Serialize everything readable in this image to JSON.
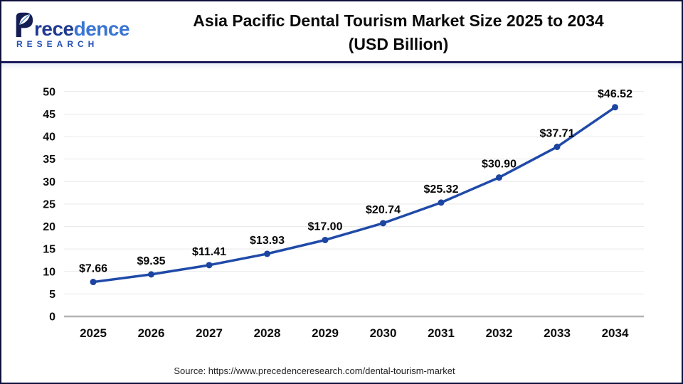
{
  "header": {
    "logo": {
      "brand_mid": "rece",
      "brand_tail": "dence",
      "subtitle": "RESEARCH"
    },
    "title_line1": "Asia Pacific Dental Tourism Market Size 2025 to 2034",
    "title_line2": "(USD Billion)"
  },
  "chart_data": {
    "type": "line",
    "title": "Asia Pacific Dental Tourism Market Size 2025 to 2034 (USD Billion)",
    "categories": [
      "2025",
      "2026",
      "2027",
      "2028",
      "2029",
      "2030",
      "2031",
      "2032",
      "2033",
      "2034"
    ],
    "values": [
      7.66,
      9.35,
      11.41,
      13.93,
      17.0,
      20.74,
      25.32,
      30.9,
      37.71,
      46.52
    ],
    "point_labels": [
      "$7.66",
      "$9.35",
      "$11.41",
      "$13.93",
      "$17.00",
      "$20.74",
      "$25.32",
      "$30.90",
      "$37.71",
      "$46.52"
    ],
    "yticks": [
      0,
      5,
      10,
      15,
      20,
      25,
      30,
      35,
      40,
      45,
      50
    ],
    "ylim": [
      0,
      50
    ],
    "xlabel": "",
    "ylabel": "",
    "grid": true,
    "legend": false,
    "colors": {
      "line": "#1f4aa8",
      "point": "#1c44a0",
      "grid": "#e9e9e9",
      "axis": "#b3b3b3",
      "text": "#0d0d0d"
    }
  },
  "footer": {
    "source_text": "Source: https://www.precedenceresearch.com/dental-tourism-market"
  }
}
